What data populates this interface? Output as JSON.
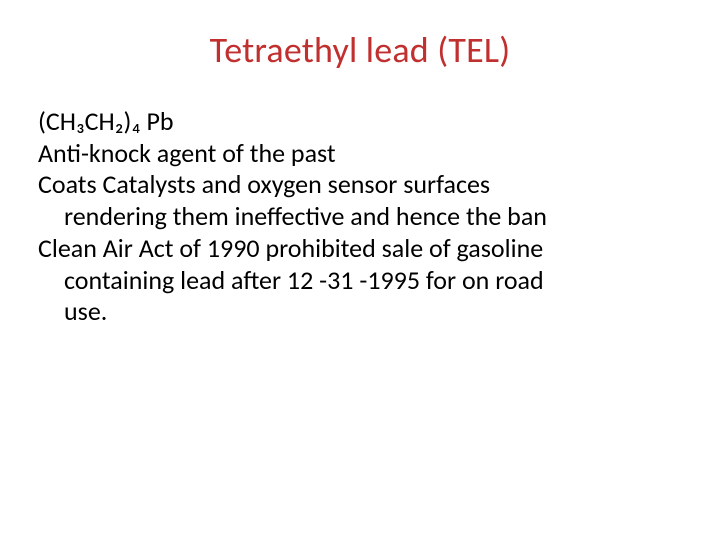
{
  "colors": {
    "title": "#c0302e",
    "body": "#000000",
    "background": "#ffffff"
  },
  "typography": {
    "title_fontsize": 36,
    "body_fontsize": 26,
    "font_family": "Calibri"
  },
  "title": "Tetraethyl lead (TEL)",
  "lines": {
    "l1": "(CH₃CH₂)₄ Pb",
    "l2": "Anti-knock agent of the past",
    "l3": "Coats Catalysts and oxygen sensor surfaces",
    "l4": "rendering them ineffective and hence the ban",
    "l5": "Clean Air Act of 1990 prohibited sale of gasoline",
    "l6": "containing lead after 12 -31 -1995 for on road",
    "l7": "use."
  }
}
